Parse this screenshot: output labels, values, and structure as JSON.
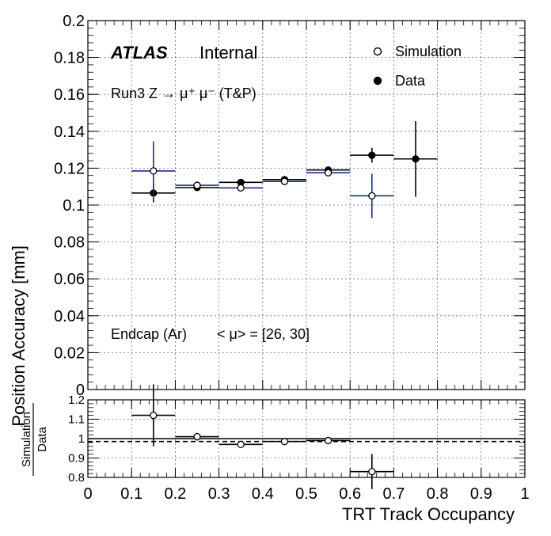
{
  "chart_data": [
    {
      "type": "scatter",
      "panel": "main",
      "ylabel": "Position Accuracy [mm]",
      "ylim": [
        0,
        0.2
      ],
      "xlim": [
        0,
        1
      ],
      "yticks": [
        "0",
        "0.02",
        "0.04",
        "0.06",
        "0.08",
        "0.1",
        "0.12",
        "0.14",
        "0.16",
        "0.18",
        "0.2"
      ],
      "grid": true,
      "legend_position": "top-right",
      "label_atlas": "ATLAS",
      "label_status": "Internal",
      "label_run": "Run3 Z → μ⁺ μ⁻ (T&P)",
      "label_region": "Endcap (Ar)",
      "label_pileup": "< μ> = [26, 30]",
      "series": [
        {
          "name": "Simulation",
          "marker": "open-circle",
          "color": "#1a2a8c",
          "points": [
            {
              "x": 0.15,
              "xerr": 0.05,
              "y": 0.1185,
              "yerr": 0.016
            },
            {
              "x": 0.25,
              "xerr": 0.05,
              "y": 0.1107,
              "yerr": 0.002
            },
            {
              "x": 0.35,
              "xerr": 0.05,
              "y": 0.1093,
              "yerr": 0.001
            },
            {
              "x": 0.45,
              "xerr": 0.05,
              "y": 0.1128,
              "yerr": 0.001
            },
            {
              "x": 0.55,
              "xerr": 0.05,
              "y": 0.1175,
              "yerr": 0.0015
            },
            {
              "x": 0.65,
              "xerr": 0.05,
              "y": 0.105,
              "yerr": 0.012
            }
          ]
        },
        {
          "name": "Data",
          "marker": "filled-circle",
          "color": "#000000",
          "points": [
            {
              "x": 0.15,
              "xerr": 0.05,
              "y": 0.1065,
              "yerr": 0.005
            },
            {
              "x": 0.25,
              "xerr": 0.05,
              "y": 0.1095,
              "yerr": 0.001
            },
            {
              "x": 0.35,
              "xerr": 0.05,
              "y": 0.1123,
              "yerr": 0.0015
            },
            {
              "x": 0.45,
              "xerr": 0.05,
              "y": 0.1138,
              "yerr": 0.001
            },
            {
              "x": 0.55,
              "xerr": 0.05,
              "y": 0.119,
              "yerr": 0.001
            },
            {
              "x": 0.65,
              "xerr": 0.05,
              "y": 0.127,
              "yerr": 0.004
            },
            {
              "x": 0.75,
              "xerr": 0.05,
              "y": 0.125,
              "yerr": 0.0205
            }
          ]
        }
      ]
    },
    {
      "type": "scatter",
      "panel": "ratio",
      "ylabel_numerator": "Simulation",
      "ylabel_denominator": "Data",
      "xlabel": "TRT Track Occupancy",
      "ylim": [
        0.8,
        1.2
      ],
      "xlim": [
        0,
        1
      ],
      "yticks": [
        "0.8",
        "0.9",
        "1",
        "1.1",
        "1.2"
      ],
      "xticks": [
        "0",
        "0.1",
        "0.2",
        "0.3",
        "0.4",
        "0.5",
        "0.6",
        "0.7",
        "0.8",
        "0.9",
        "1"
      ],
      "reference_lines": [
        {
          "y": 1.0,
          "style": "solid"
        },
        {
          "y": 0.985,
          "style": "dashed"
        }
      ],
      "grid": true,
      "points": [
        {
          "x": 0.15,
          "xerr": 0.05,
          "y": 1.12,
          "yerr": 0.16
        },
        {
          "x": 0.25,
          "xerr": 0.05,
          "y": 1.01,
          "yerr": 0.02
        },
        {
          "x": 0.35,
          "xerr": 0.05,
          "y": 0.97,
          "yerr": 0.01
        },
        {
          "x": 0.45,
          "xerr": 0.05,
          "y": 0.985,
          "yerr": 0.008
        },
        {
          "x": 0.55,
          "xerr": 0.05,
          "y": 0.99,
          "yerr": 0.015
        },
        {
          "x": 0.65,
          "xerr": 0.05,
          "y": 0.83,
          "yerr": 0.09
        }
      ]
    }
  ]
}
